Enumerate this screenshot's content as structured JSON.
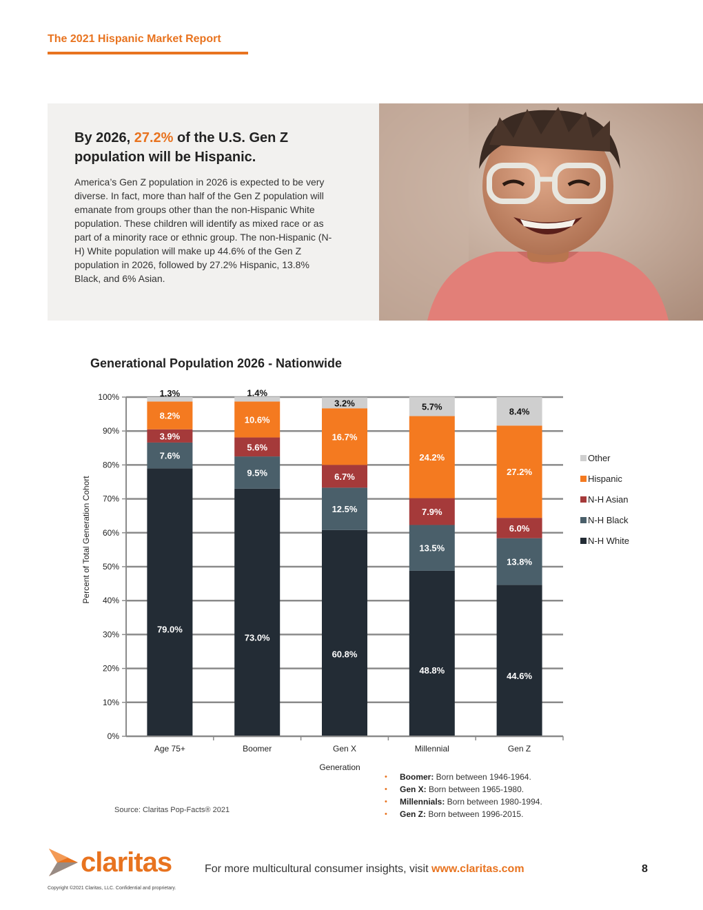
{
  "header": {
    "report_title": "The 2021 Hispanic Market Report"
  },
  "callout": {
    "heading_before": "By 2026, ",
    "heading_accent": "27.2%",
    "heading_after": " of the U.S. Gen Z population will be Hispanic.",
    "body": "America’s Gen Z population in 2026 is expected to be very diverse. In fact, more than half of the Gen Z population will emanate from groups other than the non-Hispanic White population. These children will identify as mixed race or as part of a minority race or ethnic group. The non-Hispanic (N-H) White population will make up 44.6% of the Gen Z population in 2026, followed by 27.2% Hispanic, 13.8% Black, and 6% Asian."
  },
  "chart_data": {
    "type": "bar",
    "stacked": true,
    "title": "Generational Population 2026 - Nationwide",
    "xlabel": "Generation",
    "ylabel": "Percent of Total Generation Cohort",
    "ylim": [
      0,
      100
    ],
    "yticks": [
      "0%",
      "10%",
      "20%",
      "30%",
      "40%",
      "50%",
      "60%",
      "70%",
      "80%",
      "90%",
      "100%"
    ],
    "categories": [
      "Age 75+",
      "Boomer",
      "Gen X",
      "Millennial",
      "Gen Z"
    ],
    "series": [
      {
        "name": "N-H White",
        "color": "#232c35",
        "label_color": "#ffffff",
        "values": [
          79.0,
          73.0,
          60.8,
          48.8,
          44.6
        ],
        "labels": [
          "79.0%",
          "73.0%",
          "60.8%",
          "48.8%",
          "44.6%"
        ]
      },
      {
        "name": "N-H Black",
        "color": "#4a5f6a",
        "label_color": "#ffffff",
        "values": [
          7.6,
          9.5,
          12.5,
          13.5,
          13.8
        ],
        "labels": [
          "7.6%",
          "9.5%",
          "12.5%",
          "13.5%",
          "13.8%"
        ]
      },
      {
        "name": "N-H Asian",
        "color": "#a53a3a",
        "label_color": "#ffffff",
        "values": [
          3.9,
          5.6,
          6.7,
          7.9,
          6.0
        ],
        "labels": [
          "3.9%",
          "5.6%",
          "6.7%",
          "7.9%",
          "6.0%"
        ]
      },
      {
        "name": "Hispanic",
        "color": "#f47a20",
        "label_color": "#ffffff",
        "values": [
          8.2,
          10.6,
          16.7,
          24.2,
          27.2
        ],
        "labels": [
          "8.2%",
          "10.6%",
          "16.7%",
          "24.2%",
          "27.2%"
        ]
      },
      {
        "name": "Other",
        "color": "#cfcfcf",
        "label_color": "#111111",
        "values": [
          1.3,
          1.4,
          3.2,
          5.7,
          8.4
        ],
        "labels": [
          "1.3%",
          "1.4%",
          "3.2%",
          "5.7%",
          "8.4%"
        ]
      }
    ],
    "legend": [
      "Other",
      "Hispanic",
      "N-H Asian",
      "N-H Black",
      "N-H White"
    ],
    "legend_position": "right",
    "grid": true
  },
  "source": "Source: Claritas Pop-Facts® 2021",
  "generations": [
    {
      "name": "Boomer:",
      "range": " Born between 1946-1964."
    },
    {
      "name": "Gen X:",
      "range": " Born between 1965-1980."
    },
    {
      "name": "Millennials:",
      "range": " Born between 1980-1994."
    },
    {
      "name": "Gen Z:",
      "range": " Born between 1996-2015."
    }
  ],
  "footer": {
    "logo_text": "claritas",
    "cta_text": "For more multicultural consumer insights, visit ",
    "cta_link": "www.claritas.com",
    "page_number": "8",
    "copyright": "Copyright ©2021 Claritas, LLC. Confidential and proprietary."
  },
  "colors": {
    "accent": "#e8731f"
  }
}
